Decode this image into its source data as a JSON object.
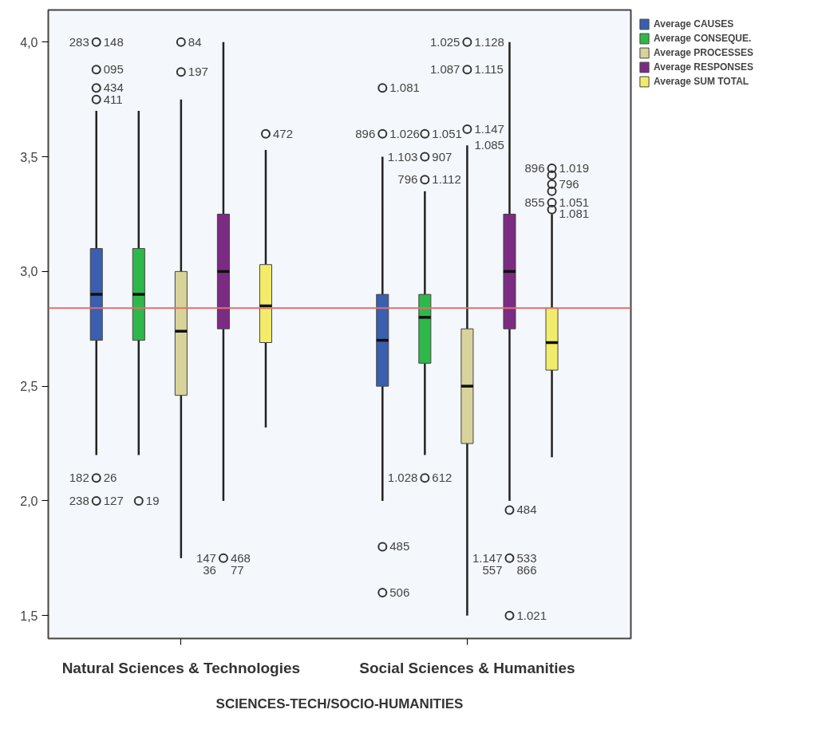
{
  "chart_data": {
    "type": "box",
    "categories": [
      "Natural Sciences & Technologies",
      "Social Sciences & Humanities"
    ],
    "xlabel": "SCIENCES-TECH/SOCIO-HUMANITIES",
    "ylim": [
      1.4,
      4.14
    ],
    "yticks": [
      {
        "value": 1.5,
        "label": "1,5"
      },
      {
        "value": 2.0,
        "label": "2,0"
      },
      {
        "value": 2.5,
        "label": "2,5"
      },
      {
        "value": 3.0,
        "label": "3,0"
      },
      {
        "value": 3.5,
        "label": "3,5"
      },
      {
        "value": 4.0,
        "label": "4,0"
      }
    ],
    "grid": false,
    "legend": "top right",
    "series": [
      {
        "name": "Average CAUSES",
        "color": "#3a5fb0",
        "boxes": [
          {
            "low": 2.2,
            "q1": 2.7,
            "median": 2.9,
            "q3": 3.1,
            "high": 3.7,
            "outliers": [
              4.0,
              3.88,
              3.8,
              3.75,
              2.1,
              2.0
            ]
          },
          {
            "low": 2.0,
            "q1": 2.5,
            "median": 2.7,
            "q3": 2.9,
            "high": 3.5,
            "outliers": [
              3.8,
              3.6,
              1.8,
              1.6
            ]
          }
        ]
      },
      {
        "name": "Average CONSEQUE.",
        "color": "#2fb84a",
        "boxes": [
          {
            "low": 2.2,
            "q1": 2.7,
            "median": 2.9,
            "q3": 3.1,
            "high": 3.7,
            "outliers": [
              2.0
            ]
          },
          {
            "low": 2.2,
            "q1": 2.6,
            "median": 2.8,
            "q3": 2.9,
            "high": 3.35,
            "outliers": [
              3.6,
              3.5,
              3.4,
              2.1
            ]
          }
        ]
      },
      {
        "name": "Average PROCESSES",
        "color": "#d8d39a",
        "boxes": [
          {
            "low": 1.75,
            "q1": 2.46,
            "median": 2.74,
            "q3": 3.0,
            "high": 3.75,
            "outliers": [
              4.0,
              3.87
            ]
          },
          {
            "low": 1.5,
            "q1": 2.25,
            "median": 2.5,
            "q3": 2.75,
            "high": 3.55,
            "outliers": [
              4.0,
              3.88,
              3.62
            ]
          }
        ]
      },
      {
        "name": "Average RESPONSES",
        "color": "#7b2c82",
        "boxes": [
          {
            "low": 2.0,
            "q1": 2.75,
            "median": 3.0,
            "q3": 3.25,
            "high": 4.0,
            "outliers": [
              1.75
            ]
          },
          {
            "low": 2.0,
            "q1": 2.75,
            "median": 3.0,
            "q3": 3.25,
            "high": 4.0,
            "outliers": [
              1.96,
              1.75,
              1.5
            ]
          }
        ]
      },
      {
        "name": "Average SUM TOTAL",
        "color": "#f3ec6a",
        "boxes": [
          {
            "low": 2.32,
            "q1": 2.69,
            "median": 2.85,
            "q3": 3.03,
            "high": 3.53,
            "outliers": [
              3.6
            ]
          },
          {
            "low": 2.19,
            "q1": 2.57,
            "median": 2.69,
            "q3": 2.84,
            "high": 3.25,
            "outliers": [
              3.45,
              3.42,
              3.38,
              3.35,
              3.3,
              3.27
            ]
          }
        ]
      }
    ],
    "ref_lines": [
      {
        "axis": "y",
        "value": 2.84,
        "color": "#e07070"
      }
    ],
    "annotations": [
      "148",
      "84",
      "283",
      "095",
      "197",
      "434",
      "411",
      "472",
      "26",
      "182",
      "127",
      "19",
      "238",
      "468",
      "147",
      "77",
      "36",
      "1.081",
      "1.026",
      "1.051",
      "896",
      "907",
      "1.103",
      "1.112",
      "796",
      "1.128",
      "1.025",
      "1.115",
      "1.087",
      "1.147",
      "1.085",
      "1.019",
      "896",
      "796",
      "1.051",
      "855",
      "1.081",
      "612",
      "1.028",
      "485",
      "506",
      "484",
      "533",
      "1.147",
      "866",
      "557",
      "1.021"
    ]
  }
}
